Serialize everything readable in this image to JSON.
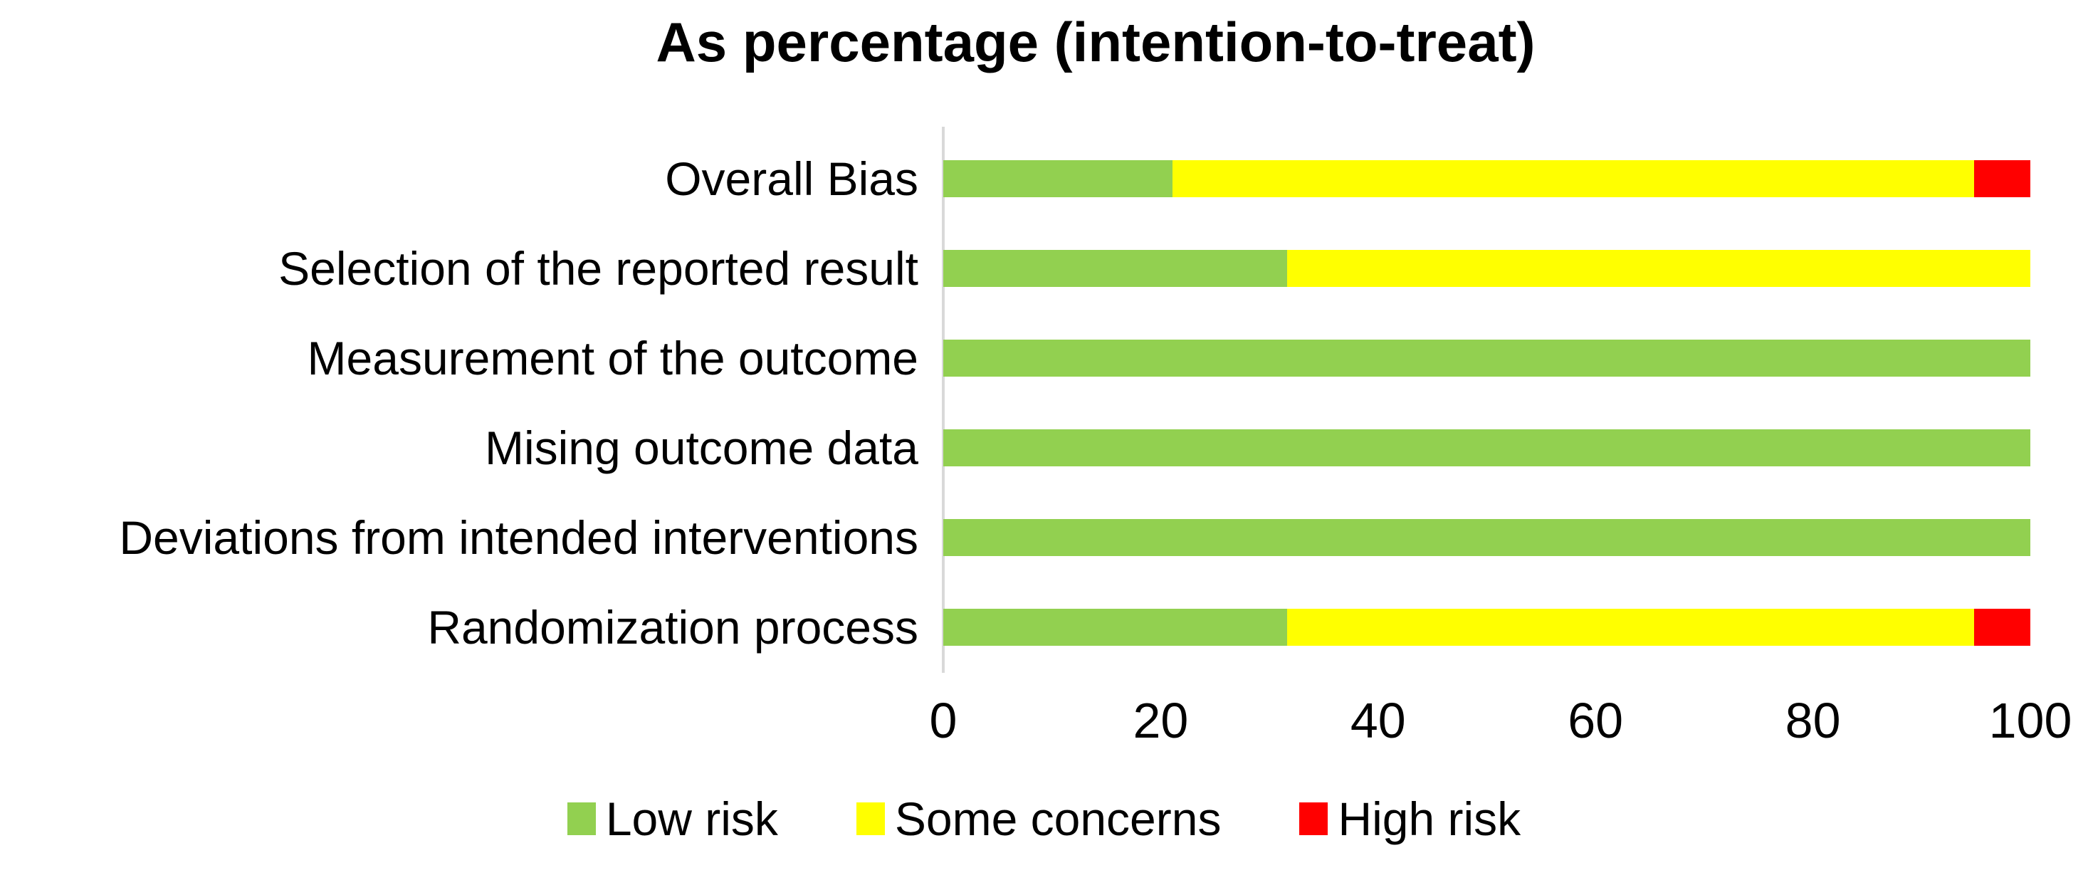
{
  "title": "As percentage (intention-to-treat)",
  "colors": {
    "low_risk": "#92D050",
    "some_concerns": "#FFFF00",
    "high_risk": "#FF0000",
    "axis_line": "#D9D9D9",
    "text": "#000000",
    "background": "#FFFFFF"
  },
  "chart_data": {
    "type": "bar",
    "stacked": true,
    "orientation": "horizontal",
    "title": "As percentage (intention-to-treat)",
    "categories": [
      "Overall Bias",
      "Selection of the reported result",
      "Measurement of the outcome",
      "Mising outcome data",
      "Deviations from intended interventions",
      "Randomization process"
    ],
    "series": [
      {
        "name": "Low risk",
        "color": "#92D050",
        "values": [
          21.1,
          31.6,
          100,
          100,
          100,
          31.6
        ]
      },
      {
        "name": "Some concerns",
        "color": "#FFFF00",
        "values": [
          73.7,
          68.4,
          0,
          0,
          0,
          63.2
        ]
      },
      {
        "name": "High risk",
        "color": "#FF0000",
        "values": [
          5.3,
          0,
          0,
          0,
          0,
          5.3
        ]
      }
    ],
    "xlabel": "",
    "ylabel": "",
    "xlim": [
      0,
      100
    ],
    "x_ticks": [
      0,
      20,
      40,
      60,
      80,
      100
    ],
    "grid": false,
    "legend_position": "bottom"
  }
}
